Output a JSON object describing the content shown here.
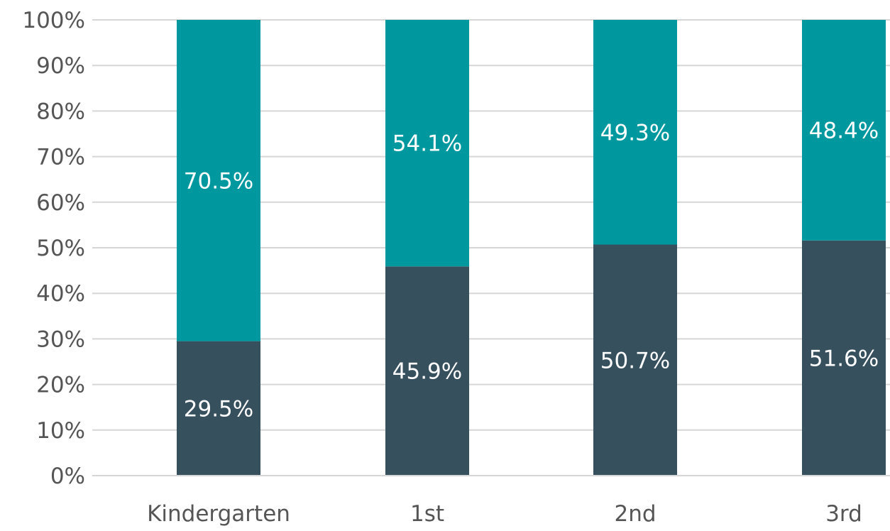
{
  "chart_data": {
    "type": "bar",
    "stacked": true,
    "categories": [
      "Kindergarten",
      "1st",
      "2nd",
      "3rd"
    ],
    "series": [
      {
        "values": [
          29.5,
          45.9,
          50.7,
          51.6
        ],
        "labels": [
          "29.5%",
          "45.9%",
          "50.7%",
          "51.6%"
        ],
        "color": "#37505e"
      },
      {
        "values": [
          70.5,
          54.1,
          49.3,
          48.4
        ],
        "labels": [
          "70.5%",
          "54.1%",
          "49.3%",
          "48.4%"
        ],
        "color": "#00989f"
      }
    ],
    "y_ticks": [
      "0%",
      "10%",
      "20%",
      "30%",
      "40%",
      "50%",
      "60%",
      "70%",
      "80%",
      "90%",
      "100%"
    ],
    "ylim": [
      0,
      100
    ],
    "grid": true,
    "legend": "none"
  }
}
